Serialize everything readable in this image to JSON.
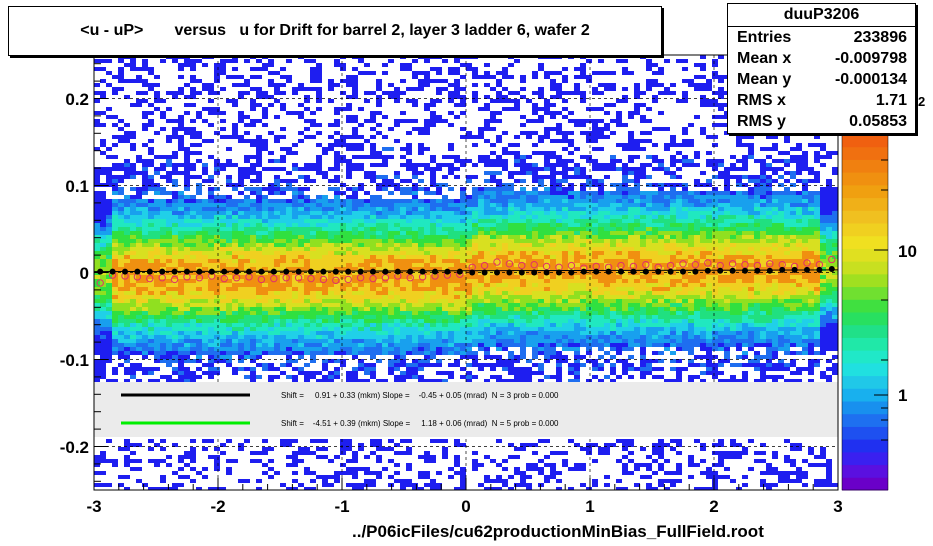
{
  "chart_data": {
    "type": "heatmap",
    "title": "<u - uP>       versus   u for Drift for barrel 2, layer 3 ladder 6, wafer 2",
    "xlim": [
      -3,
      3
    ],
    "ylim": [
      -0.25,
      0.25
    ],
    "x_ticks": [
      "-3",
      "-2",
      "-1",
      "0",
      "1",
      "2",
      "3"
    ],
    "y_ticks": [
      "0.2",
      "0.1",
      "0",
      "-0.1",
      "-0.2"
    ],
    "colorbar_ticks": [
      "10",
      "1"
    ],
    "colorbar_exponent_fragment": "2",
    "grid": true,
    "stats": {
      "name": "duuP3206",
      "rows": [
        {
          "label": "Entries",
          "value": "233896"
        },
        {
          "label": "Mean x",
          "value": "-0.009798"
        },
        {
          "label": "Mean y",
          "value": "-0.000134"
        },
        {
          "label": "RMS x",
          "value": "1.71"
        },
        {
          "label": "RMS y",
          "value": "0.05853"
        }
      ]
    },
    "legend": [
      {
        "color": "#000000",
        "text": "Shift =     0.91 + 0.33 (mkm) Slope =    -0.45 + 0.05 (mrad)  N = 3 prob = 0.000"
      },
      {
        "color": "#00ee00",
        "text": "Shift =    -4.51 + 0.39 (mkm) Slope =     1.18 + 0.06 (mrad)  N = 5 prob = 0.000"
      }
    ],
    "series": [
      {
        "name": "profile (black points)",
        "color": "#000000",
        "x": [
          -2.95,
          -2.85,
          -2.75,
          -2.65,
          -2.55,
          -2.45,
          -2.35,
          -2.25,
          -2.15,
          -2.05,
          -1.95,
          -1.85,
          -1.75,
          -1.65,
          -1.55,
          -1.45,
          -1.35,
          -1.25,
          -1.15,
          -1.05,
          -0.95,
          -0.85,
          -0.75,
          -0.65,
          -0.55,
          -0.45,
          -0.35,
          -0.25,
          -0.15,
          -0.05,
          0.05,
          0.15,
          0.25,
          0.35,
          0.45,
          0.55,
          0.65,
          0.75,
          0.85,
          0.95,
          1.05,
          1.15,
          1.25,
          1.35,
          1.45,
          1.55,
          1.65,
          1.75,
          1.85,
          1.95,
          2.05,
          2.15,
          2.25,
          2.35,
          2.45,
          2.55,
          2.65,
          2.75,
          2.85,
          2.95
        ],
        "y": [
          0.001,
          0.001,
          0.001,
          0.001,
          0.001,
          0.001,
          0.001,
          0.001,
          0.001,
          0.001,
          0.001,
          0.001,
          0.001,
          0.001,
          0.001,
          0.001,
          0.001,
          0.001,
          0.001,
          0.001,
          0.001,
          0.001,
          0.001,
          0.001,
          0.001,
          0.001,
          0.001,
          0.001,
          0.001,
          0.001,
          0.0,
          0.0,
          0.0,
          0.0,
          0.0,
          0.0,
          0.0,
          0.0,
          0.0,
          0.001,
          0.001,
          0.001,
          0.001,
          0.001,
          0.001,
          0.001,
          0.001,
          0.001,
          0.001,
          0.002,
          0.002,
          0.002,
          0.002,
          0.002,
          0.002,
          0.003,
          0.003,
          0.003,
          0.003,
          0.004
        ]
      },
      {
        "name": "profile (open red circles)",
        "color": "#e0306a",
        "x": [
          -2.95,
          -2.85,
          -2.75,
          -2.65,
          -2.55,
          -2.45,
          -2.35,
          -2.25,
          -2.15,
          -2.05,
          -1.95,
          -1.85,
          -1.75,
          -1.65,
          -1.55,
          -1.45,
          -1.35,
          -1.25,
          -1.15,
          -1.05,
          -0.95,
          -0.85,
          -0.75,
          -0.65,
          -0.55,
          -0.45,
          -0.35,
          -0.25,
          -0.15,
          -0.05,
          0.05,
          0.15,
          0.25,
          0.35,
          0.45,
          0.55,
          0.65,
          0.75,
          0.85,
          0.95,
          1.05,
          1.15,
          1.25,
          1.35,
          1.45,
          1.55,
          1.65,
          1.75,
          1.85,
          1.95,
          2.05,
          2.15,
          2.25,
          2.35,
          2.45,
          2.55,
          2.65,
          2.75,
          2.85,
          2.95
        ],
        "y": [
          -0.012,
          -0.003,
          -0.004,
          -0.005,
          -0.007,
          -0.006,
          -0.008,
          -0.005,
          -0.006,
          -0.004,
          -0.007,
          -0.006,
          -0.005,
          -0.008,
          -0.007,
          -0.006,
          -0.006,
          -0.007,
          -0.008,
          -0.009,
          -0.008,
          -0.006,
          -0.007,
          -0.006,
          -0.004,
          -0.006,
          -0.005,
          -0.004,
          -0.003,
          -0.002,
          0.006,
          0.008,
          0.012,
          0.01,
          0.008,
          0.009,
          0.007,
          0.006,
          0.008,
          0.005,
          0.007,
          0.006,
          0.008,
          0.007,
          0.009,
          0.006,
          0.008,
          0.01,
          0.009,
          0.011,
          0.008,
          0.01,
          0.009,
          0.008,
          0.01,
          0.009,
          0.007,
          0.011,
          0.009,
          0.015
        ]
      }
    ],
    "file_label": "../P06icFiles/cu62productionMinBias_FullField.root"
  }
}
